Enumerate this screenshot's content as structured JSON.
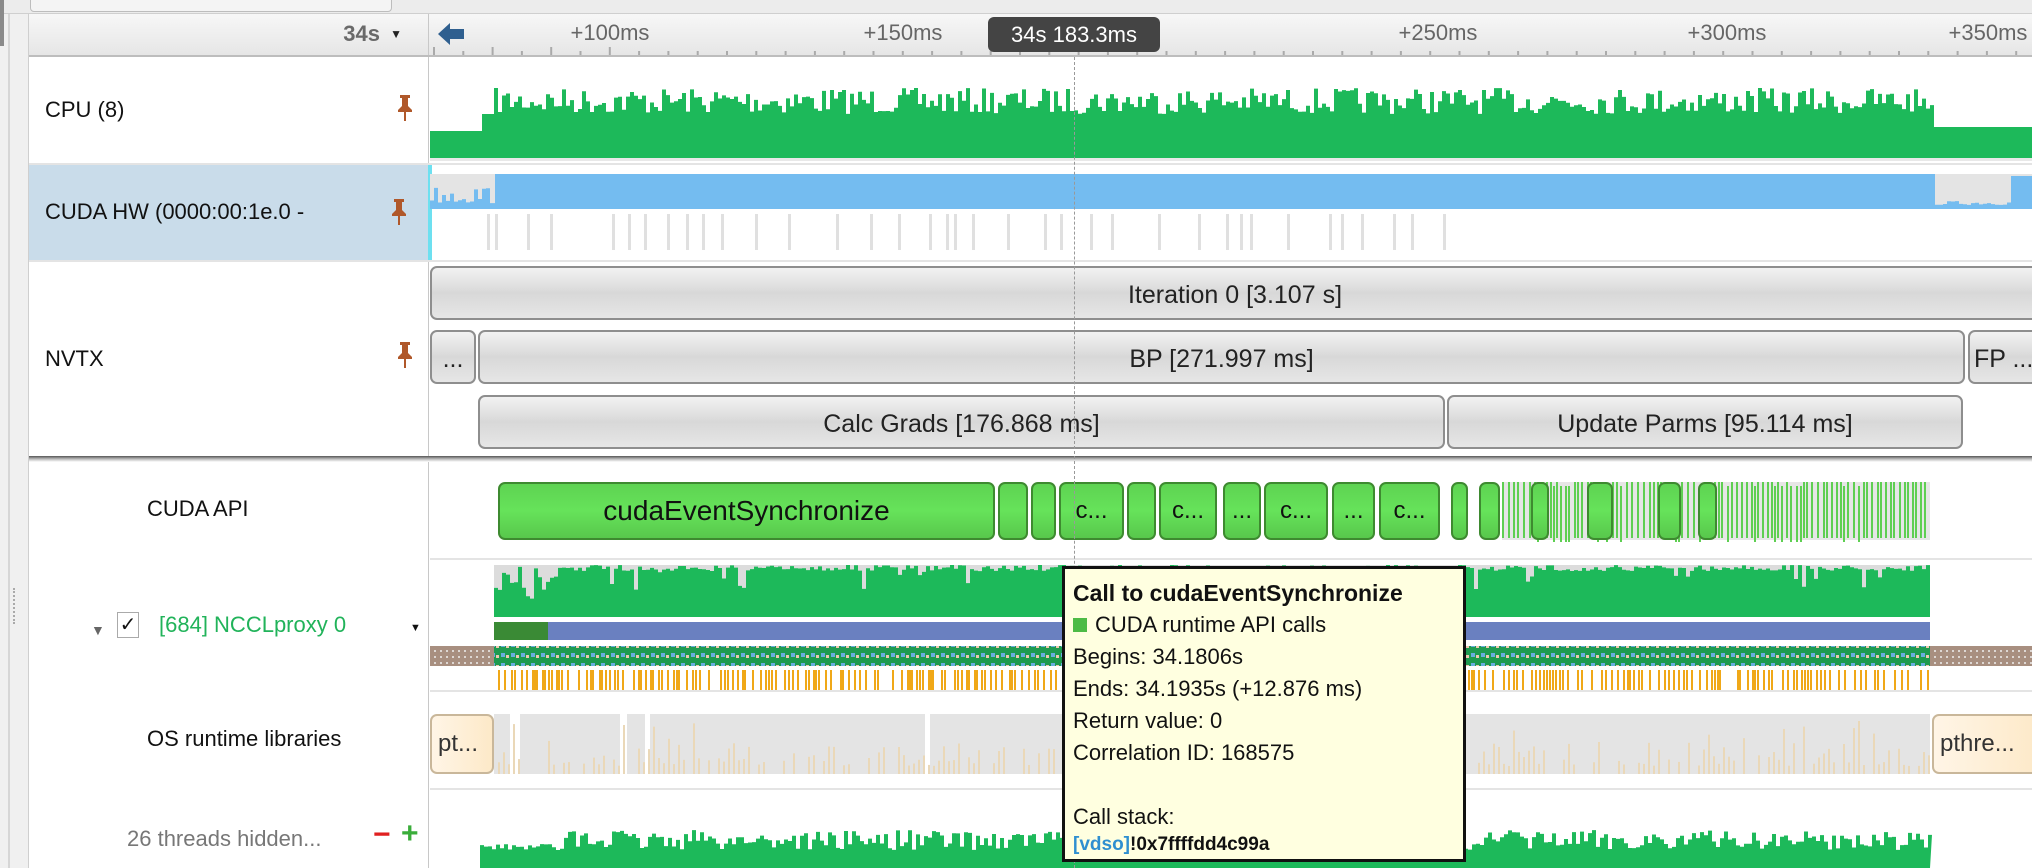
{
  "header": {
    "time_base": "34s",
    "ticks": [
      "+100ms",
      "+150ms",
      "+250ms",
      "+300ms",
      "+350ms"
    ],
    "cursor_time": "34s 183.3ms"
  },
  "rows": {
    "cpu": {
      "label": "CPU (8)"
    },
    "cuda_hw": {
      "label": "CUDA HW (0000:00:1e.0 - ",
      "selected": true
    },
    "nvtx": {
      "label": "NVTX",
      "ranges": {
        "iteration": "Iteration 0 [3.107 s]",
        "prev": "...",
        "bp": "BP [271.997 ms]",
        "fp": "FP ...",
        "calc_grads": "Calc Grads [176.868 ms]",
        "update_parms": "Update Parms [95.114 ms]"
      }
    },
    "cuda_api": {
      "label": "CUDA API",
      "calls": [
        "cudaEventSynchronize",
        "",
        "",
        "c...",
        "",
        "c...",
        "...",
        "c...",
        "...",
        "c...",
        "",
        ""
      ]
    },
    "thread": {
      "label": "[684] NCCLproxy 0",
      "checked": true,
      "check_glyph": "✓"
    },
    "os_runtime": {
      "label": "OS runtime libraries",
      "left_call": "pt...",
      "right_call": "pthre..."
    },
    "hidden": {
      "label": "26 threads hidden...",
      "minus": "−",
      "plus": "+"
    }
  },
  "tooltip": {
    "title": "Call to cudaEventSynchronize",
    "category": "CUDA runtime API calls",
    "begins": "Begins: 34.1806s",
    "ends": "Ends: 34.1935s (+12.876 ms)",
    "return_value": "Return value: 0",
    "correlation_id": "Correlation ID: 168575",
    "call_stack_label": "Call stack:",
    "frame_module": "[vdso]",
    "frame_address": "!0x7ffffdd4c99a"
  },
  "colors": {
    "cpu_green": "#1db95a",
    "cuda_hw_blue": "#74bcf0",
    "api_green": "#62dd55",
    "pin": "#b0582a",
    "thread_label_green": "#21b35a",
    "selected_row": "#c9dcea",
    "tooltip_bg": "#ffffe0"
  }
}
